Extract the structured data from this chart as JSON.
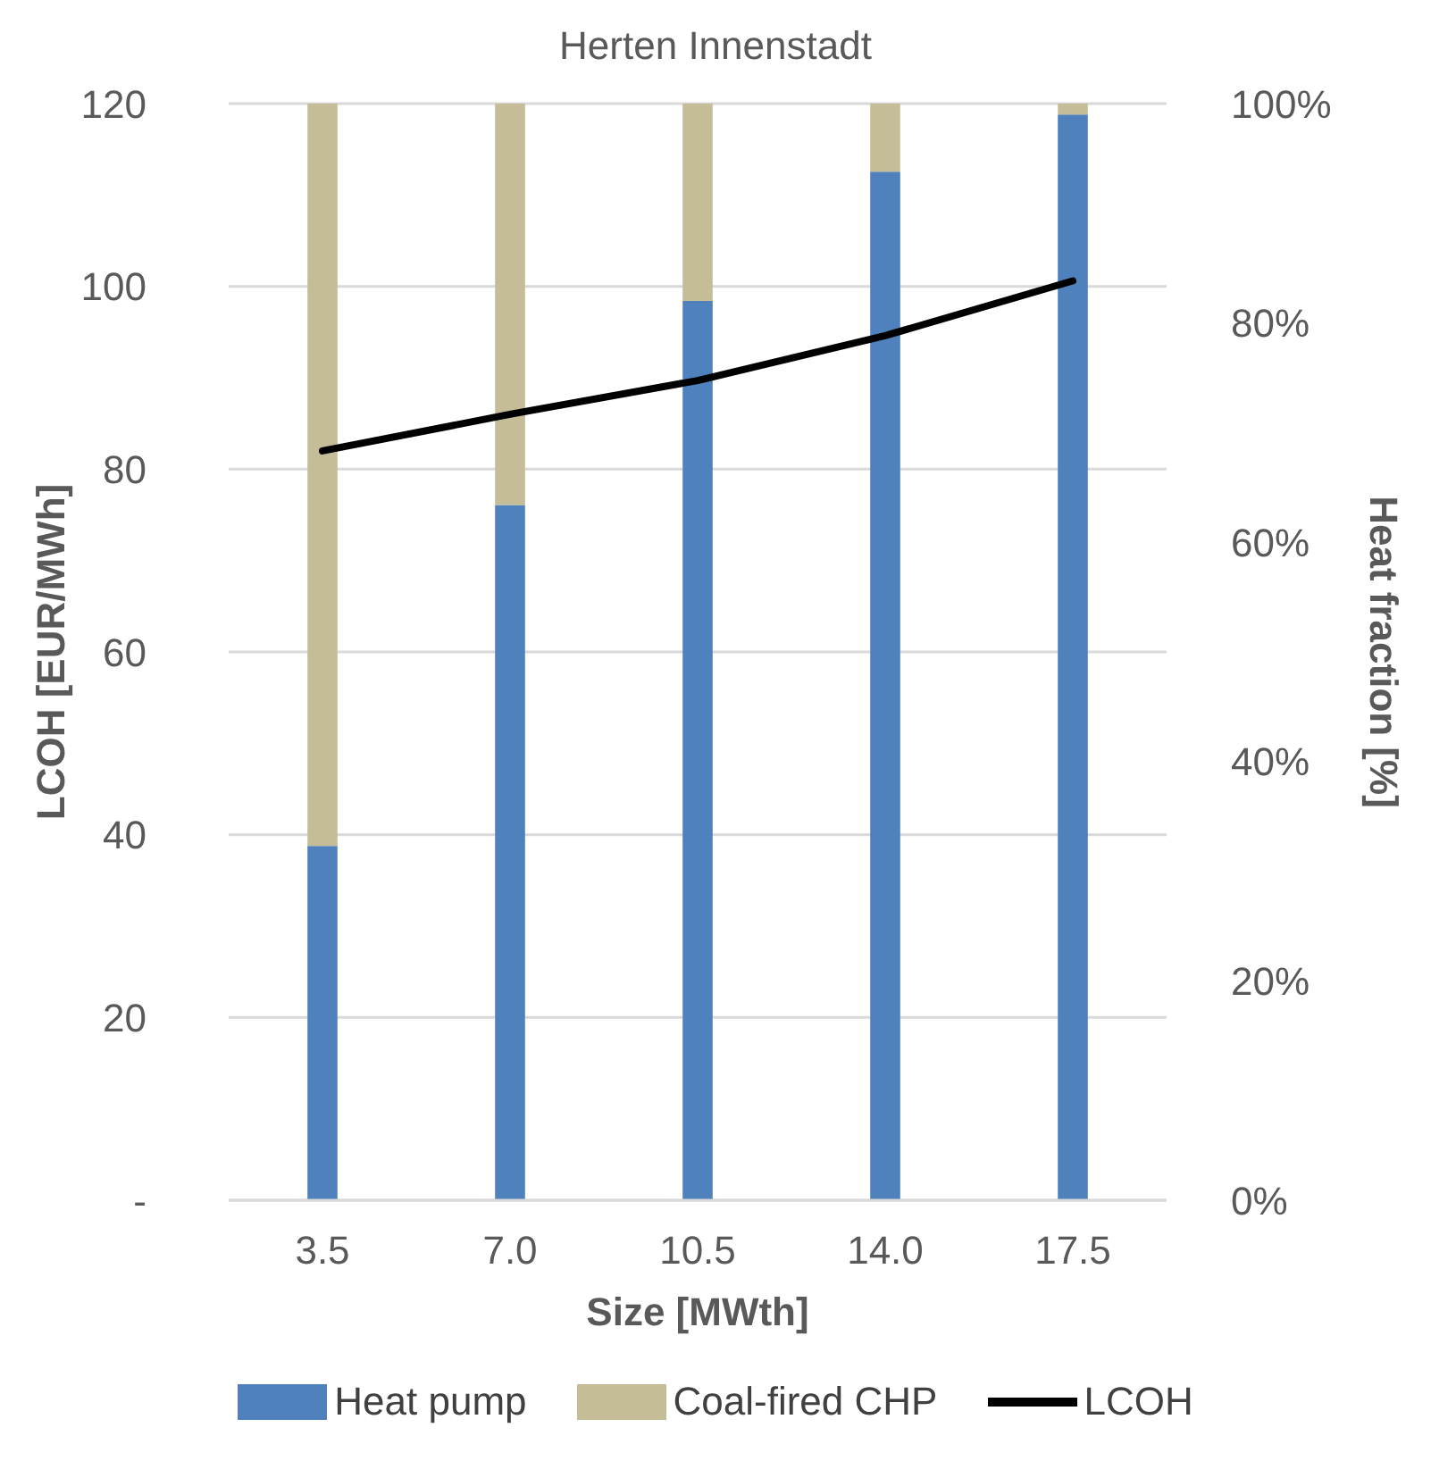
{
  "chart_data": {
    "type": "bar",
    "title": "Herten Innenstadt",
    "xlabel": "Size [MWth]",
    "ylabel": "LCOH [EUR/MWh]",
    "y2label": "Heat fraction [%]",
    "categories": [
      "3.5",
      "7.0",
      "10.5",
      "14.0",
      "17.5"
    ],
    "series": [
      {
        "name": "Heat pump",
        "axis": "y2",
        "color": "#4f81bd",
        "values": [
          32.3,
          63.4,
          82,
          93.8,
          99
        ]
      },
      {
        "name": "Coal-fired CHP",
        "axis": "y2",
        "color": "#c4bd97",
        "values": [
          67.7,
          36.6,
          18,
          6.2,
          1
        ]
      },
      {
        "name": "LCOH",
        "type": "line",
        "color": "#000000",
        "values": [
          82,
          86,
          89.7,
          94.6,
          100.6
        ]
      }
    ],
    "stacked": true,
    "ylim": [
      0,
      120
    ],
    "yticks": [
      {
        "value": 0,
        "label": "-"
      },
      20,
      40,
      60,
      80,
      100,
      120
    ],
    "y2lim": [
      0,
      100
    ],
    "y2ticks": [
      {
        "value": 0,
        "label": "0%"
      },
      {
        "value": 20,
        "label": "20%"
      },
      {
        "value": 40,
        "label": "40%"
      },
      {
        "value": 60,
        "label": "60%"
      },
      {
        "value": 80,
        "label": "80%"
      },
      {
        "value": 100,
        "label": "100%"
      }
    ],
    "grid": "y",
    "legend": "bottom",
    "marker": "none",
    "line_style": "solid"
  }
}
